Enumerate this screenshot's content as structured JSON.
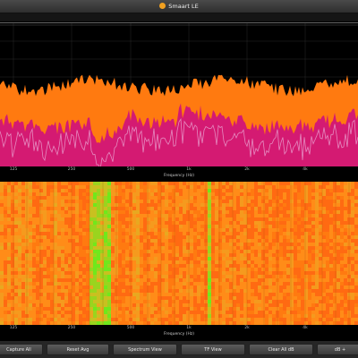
{
  "window": {
    "title": "Smaart LE"
  },
  "spectrum": {
    "x_axis": {
      "title": "Frequency (Hz)",
      "ticks": [
        "125",
        "250",
        "500",
        "1k",
        "2k",
        "4k"
      ]
    },
    "colors": {
      "upper": "#ff7a10",
      "lower": "#d41a72",
      "trace": "#e58ac0"
    }
  },
  "spectrograph": {
    "x_axis": {
      "title": "Frequency (Hz)",
      "ticks": [
        "125",
        "250",
        "500",
        "1k",
        "2k",
        "4k"
      ]
    },
    "colors": {
      "base": "#ff7a10",
      "hot": "#70e81c"
    }
  },
  "toolbar": {
    "capture_all": "Capture All",
    "reset_avg": "Reset Avg",
    "spectrum_view": "Spectrum View",
    "tf_view": "TF View",
    "clear_all_dft": "Clear All dB",
    "db_plus": "dB +"
  }
}
